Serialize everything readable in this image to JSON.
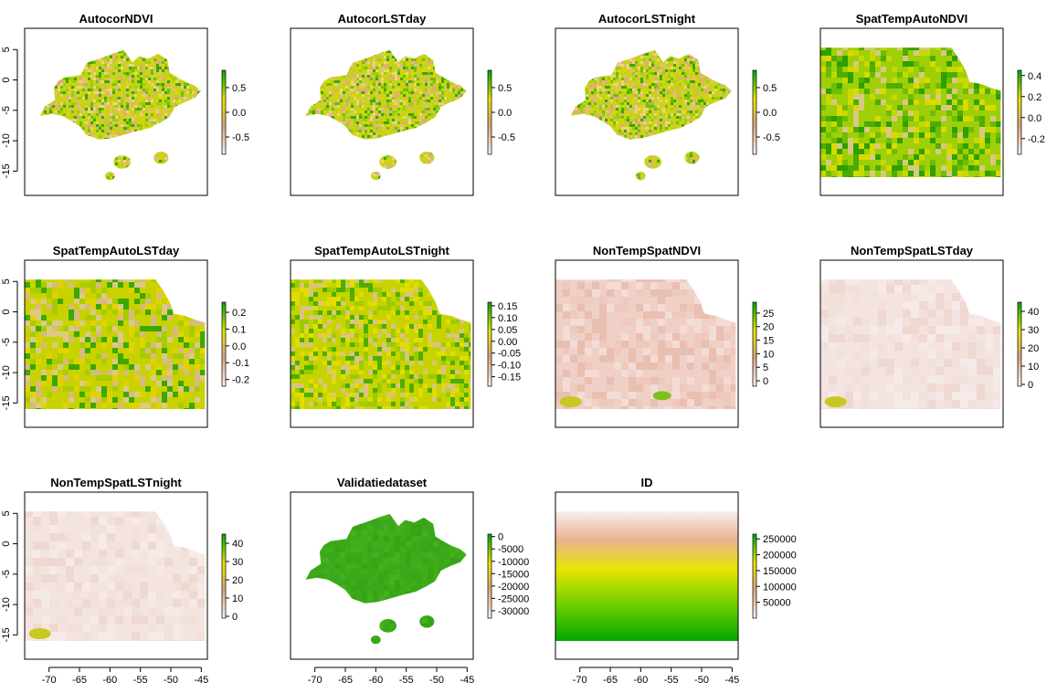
{
  "chart_data": [
    {
      "type": "heatmap",
      "title": "AutocorNDVI",
      "legend": {
        "ticks": [
          -0.5,
          0.0,
          0.5
        ],
        "labels": [
          "-0.5",
          "0.0",
          "0.5"
        ],
        "range": [
          -0.85,
          0.85
        ],
        "colors": [
          "#f7f0ee",
          "#e0a27a",
          "#e6e600",
          "#00a600"
        ]
      },
      "raster": "patch",
      "y_ticks": [
        5,
        0,
        -5,
        -10,
        -15
      ],
      "x_ticks": []
    },
    {
      "type": "heatmap",
      "title": "AutocorLSTday",
      "legend": {
        "ticks": [
          -0.5,
          0.0,
          0.5
        ],
        "labels": [
          "-0.5",
          "0.0",
          "0.5"
        ],
        "range": [
          -0.85,
          0.85
        ],
        "colors": [
          "#f7f0ee",
          "#e0a27a",
          "#e6e600",
          "#00a600"
        ]
      },
      "raster": "patch",
      "y_ticks": [],
      "x_ticks": []
    },
    {
      "type": "heatmap",
      "title": "AutocorLSTnight",
      "legend": {
        "ticks": [
          -0.5,
          0.0,
          0.5
        ],
        "labels": [
          "-0.5",
          "0.0",
          "0.5"
        ],
        "range": [
          -0.85,
          0.85
        ],
        "colors": [
          "#f7f0ee",
          "#e0a27a",
          "#e6e600",
          "#00a600"
        ]
      },
      "raster": "patch",
      "y_ticks": [],
      "x_ticks": []
    },
    {
      "type": "heatmap",
      "title": "SpatTempAutoNDVI",
      "legend": {
        "ticks": [
          -0.2,
          0.0,
          0.2,
          0.4
        ],
        "labels": [
          "-0.2",
          "0.0",
          "0.2",
          "0.4"
        ],
        "range": [
          -0.35,
          0.45
        ],
        "colors": [
          "#f7f0ee",
          "#e0a27a",
          "#e6e600",
          "#00a600"
        ]
      },
      "raster": "full-green",
      "y_ticks": [],
      "x_ticks": []
    },
    {
      "type": "heatmap",
      "title": "SpatTempAutoLSTday",
      "legend": {
        "ticks": [
          -0.2,
          -0.1,
          0.0,
          0.1,
          0.2
        ],
        "labels": [
          "-0.2",
          "-0.1",
          "0.0",
          "0.1",
          "0.2"
        ],
        "range": [
          -0.24,
          0.26
        ],
        "colors": [
          "#f7f0ee",
          "#e0a27a",
          "#e6e600",
          "#00a600"
        ]
      },
      "raster": "full-yellow",
      "y_ticks": [
        5,
        0,
        -5,
        -10,
        -15
      ],
      "x_ticks": []
    },
    {
      "type": "heatmap",
      "title": "SpatTempAutoLSTnight",
      "legend": {
        "ticks": [
          -0.15,
          -0.1,
          -0.05,
          0.0,
          0.05,
          0.1,
          0.15
        ],
        "labels": [
          "-0.15",
          "-0.10",
          "-0.05",
          "0.00",
          "0.05",
          "0.10",
          "0.15"
        ],
        "range": [
          -0.19,
          0.165
        ],
        "colors": [
          "#f7f0ee",
          "#e0a27a",
          "#e6e600",
          "#00a600"
        ]
      },
      "raster": "full-yellow2",
      "y_ticks": [],
      "x_ticks": []
    },
    {
      "type": "heatmap",
      "title": "NonTempSpatNDVI",
      "legend": {
        "ticks": [
          0,
          5,
          10,
          15,
          20,
          25
        ],
        "labels": [
          "0",
          "5",
          "10",
          "15",
          "20",
          "25"
        ],
        "range": [
          -2,
          29
        ],
        "colors": [
          "#f7f0ee",
          "#e0a27a",
          "#e6e600",
          "#00a600"
        ]
      },
      "raster": "full-pink",
      "y_ticks": [],
      "x_ticks": []
    },
    {
      "type": "heatmap",
      "title": "NonTempSpatLSTday",
      "legend": {
        "ticks": [
          0,
          10,
          20,
          30,
          40
        ],
        "labels": [
          "0",
          "10",
          "20",
          "30",
          "40"
        ],
        "range": [
          -1,
          45
        ],
        "colors": [
          "#f7f0ee",
          "#e0a27a",
          "#e6e600",
          "#00a600"
        ]
      },
      "raster": "full-pale",
      "y_ticks": [],
      "x_ticks": []
    },
    {
      "type": "heatmap",
      "title": "NonTempSpatLSTnight",
      "legend": {
        "ticks": [
          0,
          10,
          20,
          30,
          40
        ],
        "labels": [
          "0",
          "10",
          "20",
          "30",
          "40"
        ],
        "range": [
          -1,
          45
        ],
        "colors": [
          "#f7f0ee",
          "#e0a27a",
          "#e6e600",
          "#00a600"
        ]
      },
      "raster": "full-pale",
      "y_ticks": [
        5,
        0,
        -5,
        -10,
        -15
      ],
      "x_ticks": [
        -70,
        -65,
        -60,
        -55,
        -50,
        -45
      ]
    },
    {
      "type": "heatmap",
      "title": "Validatiedataset",
      "legend": {
        "ticks": [
          0,
          -5000,
          -10000,
          -15000,
          -20000,
          -25000,
          -30000
        ],
        "labels": [
          "0",
          "-5000",
          "-10000",
          "-15000",
          "-20000",
          "-25000",
          "-30000"
        ],
        "range": [
          -33000,
          1000
        ],
        "colors": [
          "#f7f0ee",
          "#e0a27a",
          "#e6e600",
          "#00a600"
        ]
      },
      "raster": "patch-green",
      "y_ticks": [],
      "x_ticks": [
        -70,
        -65,
        -60,
        -55,
        -50,
        -45
      ]
    },
    {
      "type": "heatmap",
      "title": "ID",
      "legend": {
        "ticks": [
          50000,
          100000,
          150000,
          200000,
          250000
        ],
        "labels": [
          "50000",
          "100000",
          "150000",
          "200000",
          "250000"
        ],
        "range": [
          0,
          265000
        ],
        "colors": [
          "#f7f0ee",
          "#e0a27a",
          "#e6e600",
          "#00a600"
        ]
      },
      "raster": "gradient",
      "y_ticks": [],
      "x_ticks": [
        -70,
        -65,
        -60,
        -55,
        -50,
        -45
      ]
    }
  ],
  "axes": {
    "x_range": [
      -74,
      -44
    ],
    "y_range": [
      -19,
      8.5
    ]
  }
}
